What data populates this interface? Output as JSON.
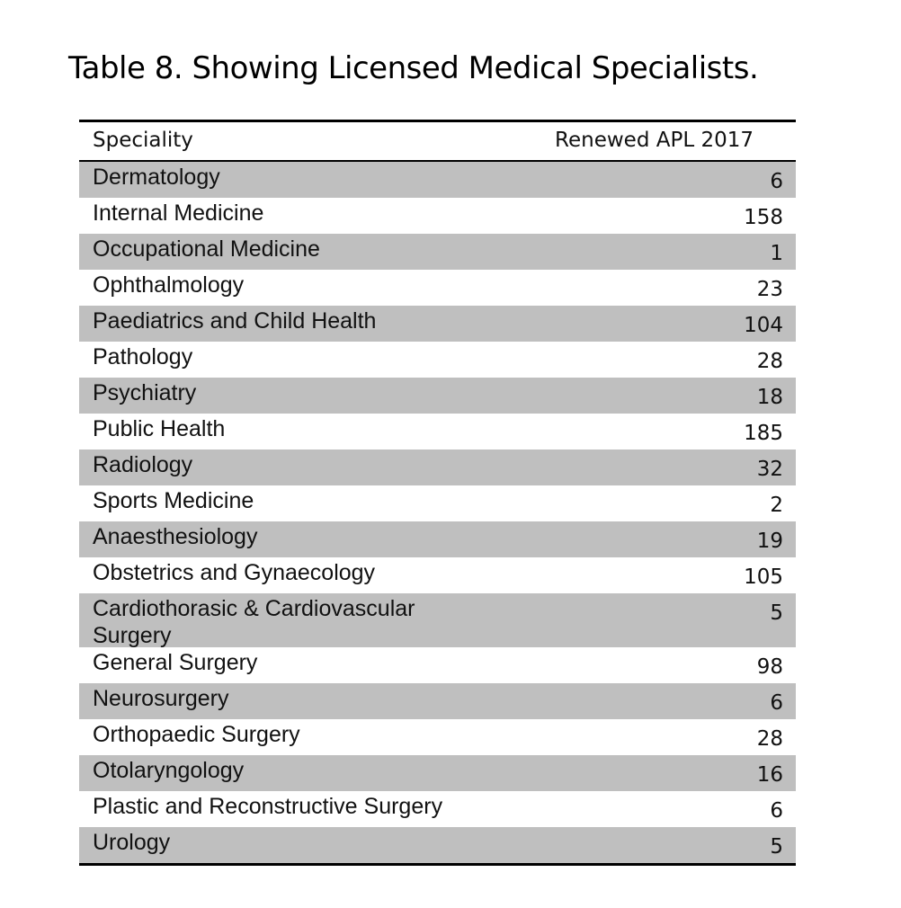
{
  "caption": "Table 8. Showing Licensed Medical Specialists.",
  "table": {
    "headers": {
      "speciality": "Speciality",
      "count": "Renewed APL 2017"
    },
    "rows": [
      {
        "speciality": "Dermatology",
        "count": "6"
      },
      {
        "speciality": "Internal Medicine",
        "count": "158"
      },
      {
        "speciality": "Occupational Medicine",
        "count": "1"
      },
      {
        "speciality": "Ophthalmology",
        "count": "23"
      },
      {
        "speciality": "Paediatrics and Child Health",
        "count": "104"
      },
      {
        "speciality": "Pathology",
        "count": "28"
      },
      {
        "speciality": "Psychiatry",
        "count": "18"
      },
      {
        "speciality": "Public Health",
        "count": "185"
      },
      {
        "speciality": "Radiology",
        "count": "32"
      },
      {
        "speciality": "Sports Medicine",
        "count": "2"
      },
      {
        "speciality": "Anaesthesiology",
        "count": "19"
      },
      {
        "speciality": "Obstetrics and Gynaecology",
        "count": "105"
      },
      {
        "speciality": "Cardiothorasic & Cardiovascular Surgery",
        "count": "5"
      },
      {
        "speciality": "General Surgery",
        "count": "98"
      },
      {
        "speciality": "Neurosurgery",
        "count": "6"
      },
      {
        "speciality": "Orthopaedic Surgery",
        "count": "28"
      },
      {
        "speciality": "Otolaryngology",
        "count": "16"
      },
      {
        "speciality": "Plastic and Reconstructive Surgery",
        "count": "6"
      },
      {
        "speciality": "Urology",
        "count": "5"
      }
    ]
  },
  "colors": {
    "row_shade": "#bfbfbf",
    "rule": "#000000"
  }
}
